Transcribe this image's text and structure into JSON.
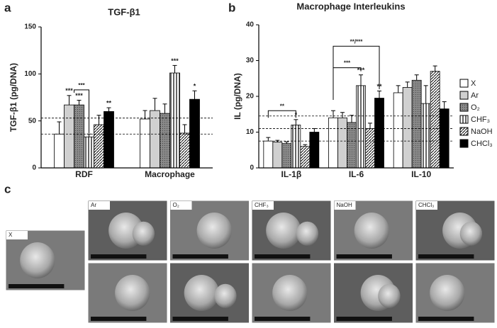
{
  "chart_data": [
    {
      "type": "bar",
      "panel": "a",
      "title": "TGF-β1",
      "y_label": "TGF-β1 (pg/DNA)",
      "categories": [
        "RDF",
        "Macrophage"
      ],
      "ylim": [
        0,
        150
      ],
      "yticks": [
        0,
        50,
        100,
        150
      ],
      "grid": false,
      "ref_lines": [
        53,
        36
      ],
      "series": [
        {
          "color": "#ffffff",
          "hatch": "none",
          "values": [
            36,
            52
          ],
          "errors": [
            13,
            9
          ],
          "significance": [
            null,
            null
          ]
        },
        {
          "color": "#d0d0d0",
          "hatch": "none",
          "values": [
            67,
            61
          ],
          "errors": [
            10,
            13
          ],
          "significance": [
            "***",
            null
          ]
        },
        {
          "color": "#8a8a8a",
          "hatch": "dots",
          "values": [
            67,
            58
          ],
          "errors": [
            5,
            10
          ],
          "significance": [
            "***",
            null
          ]
        },
        {
          "color": "#ffffff",
          "hatch": "vertical",
          "values": [
            33,
            101
          ],
          "errors": [
            3,
            8
          ],
          "significance": [
            null,
            "***"
          ]
        },
        {
          "color": "#ffffff",
          "hatch": "diagonal",
          "values": [
            46,
            37
          ],
          "errors": [
            10,
            9
          ],
          "significance": [
            null,
            null
          ]
        },
        {
          "color": "#000000",
          "hatch": "none",
          "values": [
            60,
            73
          ],
          "errors": [
            4,
            9
          ],
          "significance": [
            "**",
            "*"
          ]
        }
      ],
      "annotations": [
        "***"
      ]
    },
    {
      "type": "bar",
      "panel": "b",
      "title": "Macrophage Interleukins",
      "y_label": "IL (pg/DNA)",
      "categories": [
        "IL-1β",
        "IL-6",
        "IL-10"
      ],
      "ylim": [
        0,
        40
      ],
      "yticks": [
        0,
        10,
        20,
        30,
        40
      ],
      "grid": false,
      "ref_lines": [
        14.5,
        11,
        7.5
      ],
      "legend": "right",
      "series": [
        {
          "name": "X",
          "color": "#ffffff",
          "hatch": "none",
          "values": [
            7.5,
            14,
            21
          ],
          "errors": [
            1,
            2,
            2
          ],
          "significance": [
            null,
            null,
            null
          ]
        },
        {
          "name": "Ar",
          "color": "#d0d0d0",
          "hatch": "none",
          "values": [
            7.2,
            14,
            22.5
          ],
          "errors": [
            0.5,
            1.5,
            1.5
          ],
          "significance": [
            null,
            null,
            null
          ]
        },
        {
          "name": "O₂",
          "color": "#8a8a8a",
          "hatch": "dots",
          "values": [
            6.8,
            12.7,
            24.5
          ],
          "errors": [
            0.5,
            2,
            1.5
          ],
          "significance": [
            null,
            null,
            null
          ]
        },
        {
          "name": "CHF₃",
          "color": "#ffffff",
          "hatch": "vertical",
          "values": [
            12,
            23,
            18
          ],
          "errors": [
            1.5,
            3,
            5
          ],
          "significance": [
            "*",
            "***",
            null
          ]
        },
        {
          "name": "NaOH",
          "color": "#ffffff",
          "hatch": "diagonal",
          "values": [
            6,
            11,
            27
          ],
          "errors": [
            0.5,
            1.5,
            1.5
          ],
          "significance": [
            null,
            null,
            null
          ]
        },
        {
          "name": "CHCl₃",
          "color": "#000000",
          "hatch": "none",
          "values": [
            10,
            19.5,
            16.5
          ],
          "errors": [
            1,
            2,
            2
          ],
          "significance": [
            null,
            "**",
            null
          ]
        }
      ],
      "annotations": [
        "**",
        "***",
        "**/***"
      ]
    }
  ],
  "sem_panel": {
    "label": "c",
    "images": [
      "X",
      "Ar",
      "O₂",
      "CHF₃",
      "NaOH",
      "CHCl₃"
    ]
  }
}
